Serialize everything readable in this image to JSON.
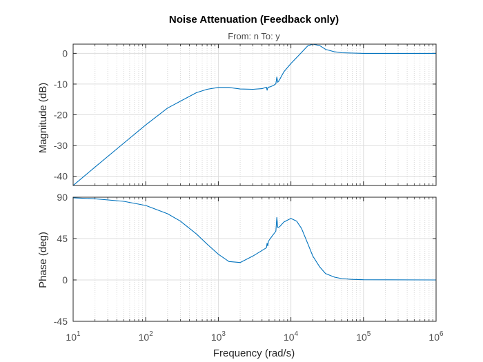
{
  "chart_data": {
    "type": "line",
    "title": "Noise Attenuation (Feedback only)",
    "subtitle": "From: n  To: y",
    "xlabel": "Frequency  (rad/s)",
    "xscale": "log",
    "xlim": [
      10,
      1000000
    ],
    "x_ticks": [
      {
        "base": "10",
        "exp": "1"
      },
      {
        "base": "10",
        "exp": "2"
      },
      {
        "base": "10",
        "exp": "3"
      },
      {
        "base": "10",
        "exp": "4"
      },
      {
        "base": "10",
        "exp": "5"
      },
      {
        "base": "10",
        "exp": "6"
      }
    ],
    "grid": true,
    "line_color": "#0072bd",
    "panels": [
      {
        "id": "magnitude",
        "ylabel": "Magnitude (dB)",
        "ylim": [
          -43,
          3
        ],
        "yticks": [
          "0",
          "-10",
          "-20",
          "-30",
          "-40"
        ],
        "ytick_values": [
          0,
          -10,
          -20,
          -30,
          -40
        ],
        "series": [
          {
            "x": [
              10,
              20,
              50,
              100,
              200,
              500,
              700,
              1000,
              1400,
              2000,
              3000,
              4000,
              4600,
              4700,
              4800,
              4900,
              5200,
              5800,
              6200,
              6400,
              6600,
              7000,
              8000,
              10000,
              13000,
              17000,
              20000,
              25000,
              30000,
              40000,
              50000,
              100000,
              1000000
            ],
            "y": [
              -43.0,
              -37.0,
              -29.2,
              -23.3,
              -17.8,
              -12.8,
              -11.7,
              -11.1,
              -11.1,
              -11.6,
              -11.7,
              -11.5,
              -11.0,
              -12.0,
              -11.2,
              -11.0,
              -10.9,
              -10.4,
              -9.9,
              -7.7,
              -9.4,
              -8.5,
              -6.0,
              -3.3,
              -0.5,
              2.4,
              3.0,
              2.5,
              1.3,
              0.5,
              0.2,
              0.0,
              0.0
            ]
          }
        ]
      },
      {
        "id": "phase",
        "ylabel": "Phase (deg)",
        "ylim": [
          -45,
          90
        ],
        "yticks": [
          "90",
          "45",
          "0",
          "-45"
        ],
        "ytick_values": [
          90,
          45,
          0,
          -45
        ],
        "series": [
          {
            "x": [
              10,
              20,
              50,
              100,
              200,
              300,
              500,
              700,
              1000,
              1400,
              2000,
              3000,
              4000,
              4600,
              4700,
              4800,
              4900,
              5200,
              5800,
              6200,
              6400,
              6600,
              7000,
              8000,
              10000,
              12000,
              14000,
              17000,
              20000,
              25000,
              30000,
              40000,
              50000,
              70000,
              100000,
              1000000
            ],
            "y": [
              89.3,
              88.3,
              85.5,
              81.0,
              72.0,
              64.0,
              50.0,
              39.0,
              28.0,
              20.0,
              19.0,
              26.0,
              32.0,
              35.0,
              40.0,
              37.0,
              42.0,
              45.0,
              50.0,
              53.0,
              68.0,
              57.0,
              58.0,
              63.0,
              67.0,
              64.0,
              56.0,
              40.0,
              26.0,
              14.0,
              7.0,
              3.0,
              1.5,
              0.6,
              0.2,
              0.0
            ]
          }
        ]
      }
    ]
  }
}
